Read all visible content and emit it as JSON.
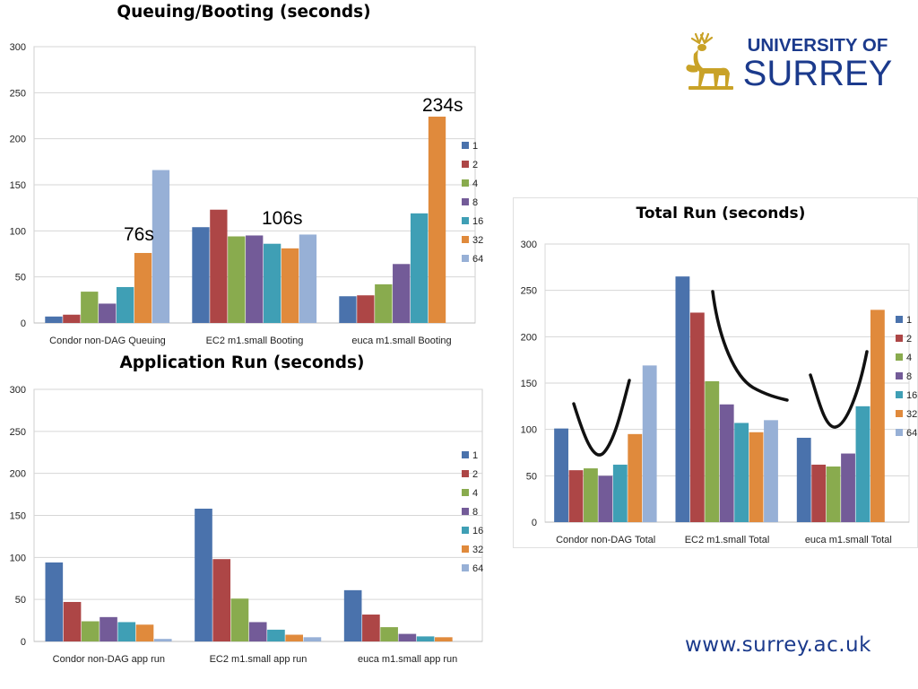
{
  "branding": {
    "university_line1": "UNIVERSITY OF",
    "university_line2": "SURREY",
    "url": "www.surrey.ac.uk",
    "brand_color": "#1b3a8c",
    "stag_color": "#c9a227"
  },
  "legend": [
    "1",
    "2",
    "4",
    "8",
    "16",
    "32",
    "64"
  ],
  "series_colors": [
    "#4a72ac",
    "#ad4646",
    "#89ab4e",
    "#735b98",
    "#3f9fb5",
    "#e08a3c",
    "#97b0d6"
  ],
  "chart_data": [
    {
      "type": "bar",
      "title": "Queuing/Booting (seconds)",
      "categories": [
        "Condor non-DAG Queuing",
        "EC2 m1.small Booting",
        "euca m1.small Booting"
      ],
      "ylim": [
        0,
        300
      ],
      "yticks": [
        0,
        50,
        100,
        150,
        200,
        250,
        300
      ],
      "series": [
        {
          "name": "1",
          "values": [
            7,
            104,
            29
          ]
        },
        {
          "name": "2",
          "values": [
            9,
            123,
            30
          ]
        },
        {
          "name": "4",
          "values": [
            34,
            94,
            42
          ]
        },
        {
          "name": "8",
          "values": [
            21,
            95,
            64
          ]
        },
        {
          "name": "16",
          "values": [
            39,
            86,
            119
          ]
        },
        {
          "name": "32",
          "values": [
            76,
            81,
            224
          ]
        },
        {
          "name": "64",
          "values": [
            166,
            96,
            0
          ]
        }
      ],
      "annotations": [
        "76s",
        "106s",
        "234s"
      ]
    },
    {
      "type": "bar",
      "title": "Application Run (seconds)",
      "categories": [
        "Condor non-DAG app run",
        "EC2 m1.small app run",
        "euca m1.small app run"
      ],
      "ylim": [
        0,
        300
      ],
      "yticks": [
        0,
        50,
        100,
        150,
        200,
        250,
        300
      ],
      "series": [
        {
          "name": "1",
          "values": [
            94,
            158,
            61
          ]
        },
        {
          "name": "2",
          "values": [
            47,
            98,
            32
          ]
        },
        {
          "name": "4",
          "values": [
            24,
            51,
            17
          ]
        },
        {
          "name": "8",
          "values": [
            29,
            23,
            9
          ]
        },
        {
          "name": "16",
          "values": [
            23,
            14,
            6
          ]
        },
        {
          "name": "32",
          "values": [
            20,
            8,
            5
          ]
        },
        {
          "name": "64",
          "values": [
            3,
            5,
            0
          ]
        }
      ],
      "annotations": []
    },
    {
      "type": "bar",
      "title": "Total Run (seconds)",
      "categories": [
        "Condor non-DAG Total",
        "EC2 m1.small Total",
        "euca m1.small Total"
      ],
      "ylim": [
        0,
        300
      ],
      "yticks": [
        0,
        50,
        100,
        150,
        200,
        250,
        300
      ],
      "series": [
        {
          "name": "1",
          "values": [
            101,
            265,
            91
          ]
        },
        {
          "name": "2",
          "values": [
            56,
            226,
            62
          ]
        },
        {
          "name": "4",
          "values": [
            58,
            152,
            60
          ]
        },
        {
          "name": "8",
          "values": [
            50,
            127,
            74
          ]
        },
        {
          "name": "16",
          "values": [
            62,
            107,
            125
          ]
        },
        {
          "name": "32",
          "values": [
            95,
            97,
            229
          ]
        },
        {
          "name": "64",
          "values": [
            169,
            110,
            0
          ]
        }
      ],
      "annotations": []
    }
  ]
}
